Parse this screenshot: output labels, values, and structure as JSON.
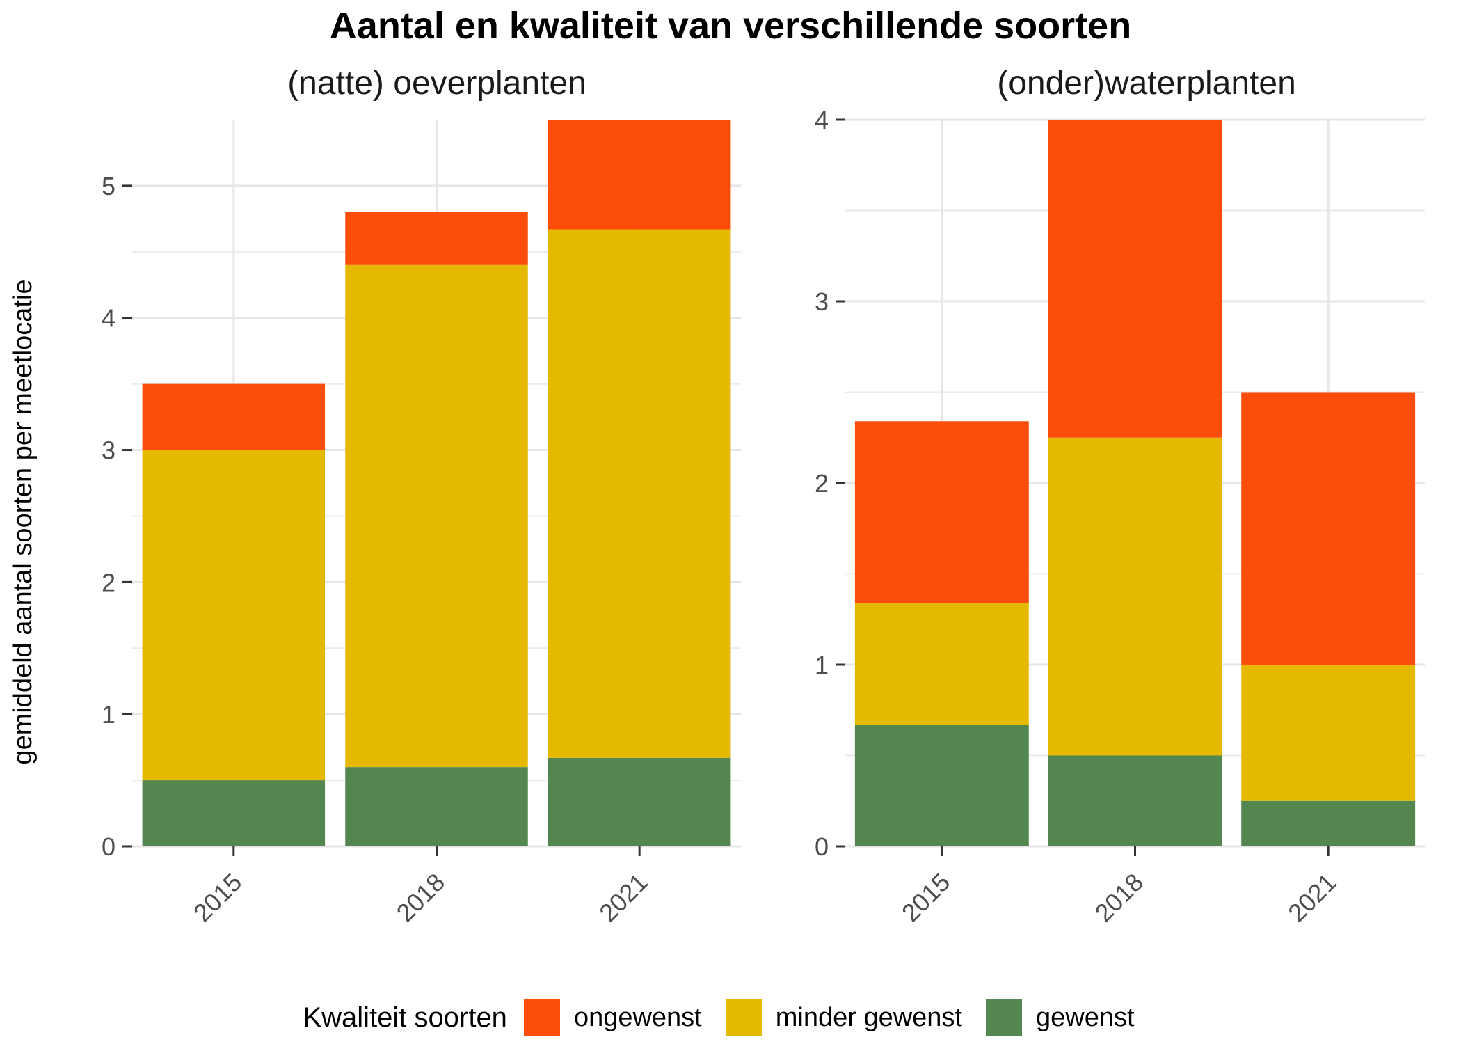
{
  "title": "Aantal en kwaliteit van verschillende soorten",
  "y_axis_title": "gemiddeld aantal soorten per meetlocatie",
  "legend": {
    "title": "Kwaliteit soorten",
    "items": [
      {
        "label": "ongewenst",
        "color": "#FC4E0A"
      },
      {
        "label": "minder gewenst",
        "color": "#E4B900"
      },
      {
        "label": "gewenst",
        "color": "#53874F"
      }
    ]
  },
  "chart_data": [
    {
      "type": "bar",
      "stacked": true,
      "title": "(natte) oeverplanten",
      "categories": [
        "2015",
        "2018",
        "2021"
      ],
      "ylim": [
        0,
        5.5
      ],
      "yticks": [
        0,
        1,
        2,
        3,
        4,
        5
      ],
      "ytick_labels": [
        "0",
        "1",
        "2",
        "3",
        "4",
        "5"
      ],
      "series": [
        {
          "name": "gewenst",
          "color": "#53874F",
          "values": [
            0.5,
            0.6,
            0.67
          ]
        },
        {
          "name": "minder gewenst",
          "color": "#E4B900",
          "values": [
            2.5,
            3.8,
            4.0
          ]
        },
        {
          "name": "ongewenst",
          "color": "#FC4E0A",
          "values": [
            0.5,
            0.4,
            0.83
          ]
        }
      ]
    },
    {
      "type": "bar",
      "stacked": true,
      "title": "(onder)waterplanten",
      "categories": [
        "2015",
        "2018",
        "2021"
      ],
      "ylim": [
        0,
        4
      ],
      "yticks": [
        0,
        1,
        2,
        3,
        4
      ],
      "ytick_labels": [
        "0",
        "1",
        "2",
        "3",
        "4"
      ],
      "series": [
        {
          "name": "gewenst",
          "color": "#53874F",
          "values": [
            0.67,
            0.5,
            0.25
          ]
        },
        {
          "name": "minder gewenst",
          "color": "#E4B900",
          "values": [
            0.67,
            1.75,
            0.75
          ]
        },
        {
          "name": "ongewenst",
          "color": "#FC4E0A",
          "values": [
            1.0,
            1.75,
            1.5
          ]
        }
      ]
    }
  ]
}
